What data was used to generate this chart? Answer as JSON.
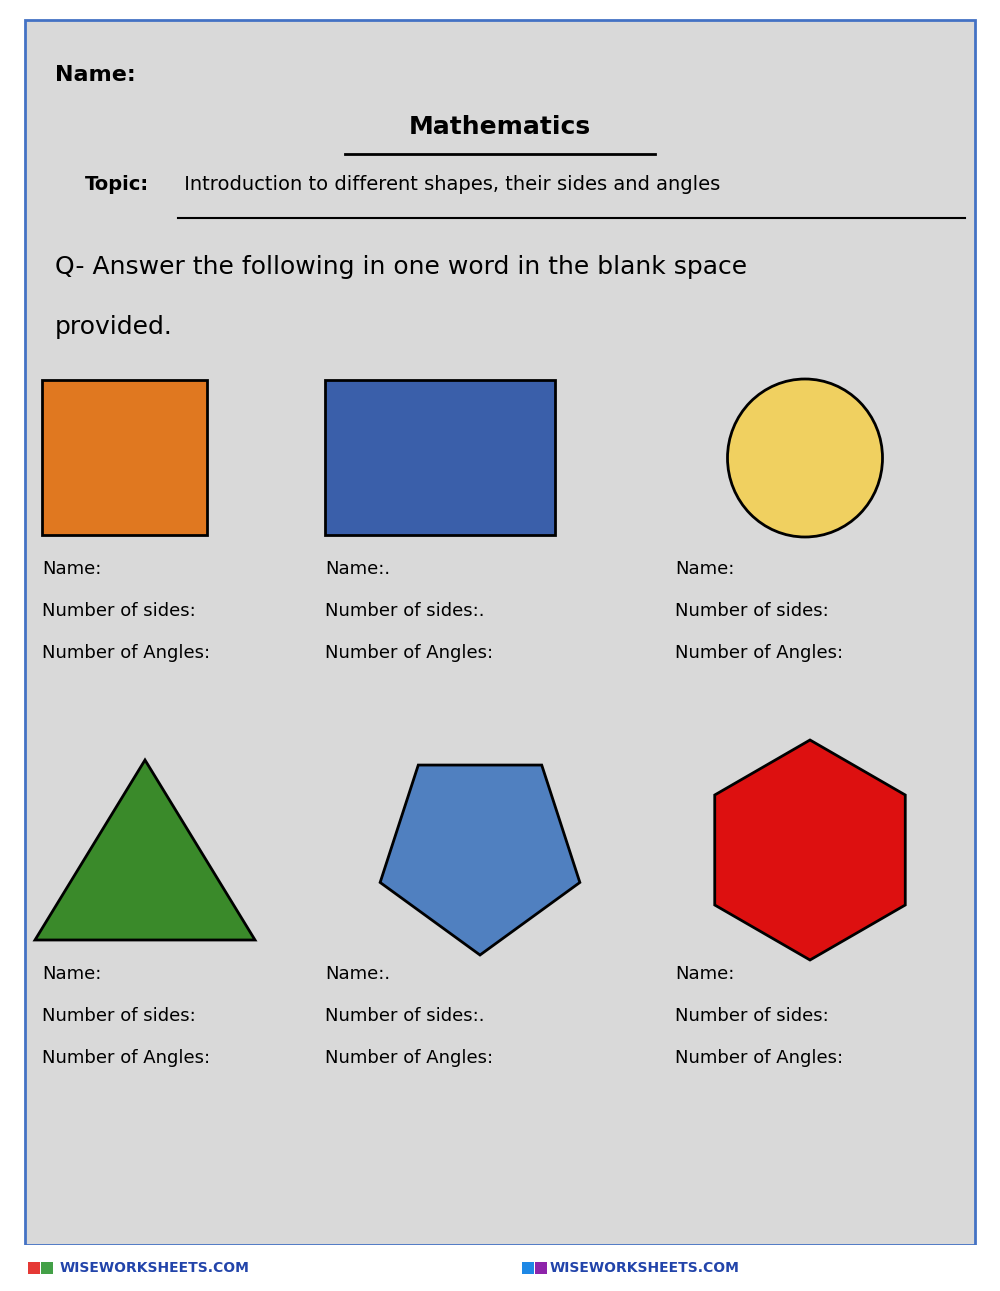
{
  "background_color": "#d9d9d9",
  "border_color": "#4472c4",
  "page_bg": "#ffffff",
  "title": "Mathematics",
  "topic_bold": "Topic:",
  "topic_text": " Introduction to different shapes, their sides and angles",
  "name_label": "Name:",
  "question_line1": "Q- Answer the following in one word in the blank space",
  "question_line2": "provided.",
  "shapes": [
    {
      "type": "square",
      "color": "#e07820",
      "edge_color": "#000000"
    },
    {
      "type": "rectangle",
      "color": "#3a5faa",
      "edge_color": "#000000"
    },
    {
      "type": "circle",
      "color": "#f0d060",
      "edge_color": "#000000"
    },
    {
      "type": "triangle",
      "color": "#3a8a2a",
      "edge_color": "#000000"
    },
    {
      "type": "pentagon",
      "color": "#5080c0",
      "edge_color": "#000000"
    },
    {
      "type": "hexagon",
      "color": "#dd1010",
      "edge_color": "#000000"
    }
  ],
  "row1_labels": [
    {
      "name": "Name:",
      "sides": "Number of sides:",
      "angles": "Number of Angles:"
    },
    {
      "name": "Name:.",
      "sides": "Number of sides:.",
      "angles": "Number of Angles:"
    },
    {
      "name": "Name:",
      "sides": "Number of sides:",
      "angles": "Number of Angles:"
    }
  ],
  "row2_labels": [
    {
      "name": "Name:",
      "sides": "Number of sides:",
      "angles": "Number of Angles:"
    },
    {
      "name": "Name:.",
      "sides": "Number of sides:.",
      "angles": "Number of Angles:"
    },
    {
      "name": "Name:",
      "sides": "Number of sides:",
      "angles": "Number of Angles:"
    }
  ],
  "footer_left": "WISEWORKSHEETS.COM",
  "footer_right": "WISEWORKSHEETS.COM"
}
